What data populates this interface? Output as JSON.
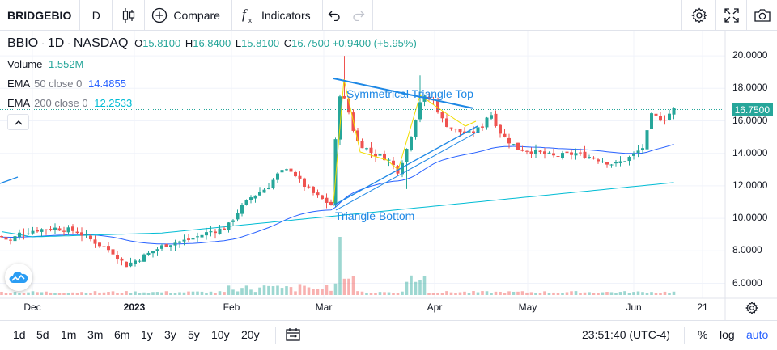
{
  "toolbar": {
    "symbol": "BRIDGEBIO",
    "interval": "D",
    "compare_label": "Compare",
    "indicators_label": "Indicators"
  },
  "legend": {
    "ticker": "BBIO",
    "interval": "1D",
    "exchange": "NASDAQ",
    "open_label": "O",
    "open": "15.8100",
    "high_label": "H",
    "high": "16.8400",
    "low_label": "L",
    "low": "15.8100",
    "close_label": "C",
    "close": "16.7500",
    "change": "+0.9400 (+5.95%)",
    "volume_label": "Volume",
    "volume": "1.552M",
    "ema50_label": "EMA",
    "ema50_params": "50 close 0",
    "ema50_value": "14.4855",
    "ema200_label": "EMA",
    "ema200_params": "200 close 0",
    "ema200_value": "12.2533"
  },
  "annotations": {
    "triangle_top": "Symmetrical Triangle Top",
    "triangle_bottom": "Triangle Bottom"
  },
  "price_axis": {
    "ticks": [
      "20.0000",
      "18.0000",
      "16.0000",
      "14.0000",
      "12.0000",
      "10.0000",
      "8.0000",
      "6.0000"
    ],
    "last_price": "16.7500"
  },
  "time_axis": {
    "ticks": [
      "Dec",
      "2023",
      "Feb",
      "Mar",
      "Apr",
      "May",
      "Jun",
      "21"
    ]
  },
  "bottombar": {
    "timeframes": [
      "1d",
      "5d",
      "1m",
      "3m",
      "6m",
      "1y",
      "3y",
      "5y",
      "10y",
      "20y"
    ],
    "clock": "23:51:40 (UTC-4)",
    "percent": "%",
    "log": "log",
    "auto": "auto"
  },
  "colors": {
    "up": "#26a69a",
    "down": "#ef5350",
    "ema50": "#2962ff",
    "ema200": "#00bcd4",
    "pattern": "#f2dd00",
    "trendline": "#1e88e5",
    "accent": "#2962ff"
  },
  "chart_data": {
    "type": "candlestick",
    "ticker": "BBIO",
    "interval": "1D",
    "ylim": [
      5.5,
      20.5
    ],
    "price_ticks": [
      20,
      18,
      16,
      14,
      12,
      10,
      8,
      6
    ],
    "x_ticks": [
      "Dec",
      "2023",
      "Feb",
      "Mar",
      "Apr",
      "May",
      "Jun",
      "21"
    ],
    "last_close": 16.75,
    "ema50_last": 14.4855,
    "ema200_last": 12.2533
  }
}
